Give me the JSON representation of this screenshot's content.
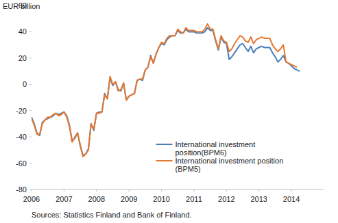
{
  "chart_data": {
    "type": "line",
    "y_label": "EUR billion",
    "note": "Sources: Statistics Finland and Bank of Finland.",
    "x": [
      2006,
      2006.083,
      2006.167,
      2006.25,
      2006.333,
      2006.417,
      2006.5,
      2006.583,
      2006.667,
      2006.75,
      2006.833,
      2006.917,
      2007,
      2007.083,
      2007.167,
      2007.25,
      2007.333,
      2007.417,
      2007.5,
      2007.583,
      2007.667,
      2007.75,
      2007.833,
      2007.917,
      2008,
      2008.083,
      2008.167,
      2008.25,
      2008.333,
      2008.417,
      2008.5,
      2008.583,
      2008.667,
      2008.75,
      2008.833,
      2008.917,
      2009,
      2009.083,
      2009.167,
      2009.25,
      2009.333,
      2009.417,
      2009.5,
      2009.583,
      2009.667,
      2009.75,
      2009.833,
      2009.917,
      2010,
      2010.083,
      2010.167,
      2010.25,
      2010.333,
      2010.417,
      2010.5,
      2010.583,
      2010.667,
      2010.75,
      2010.833,
      2010.917,
      2011,
      2011.083,
      2011.167,
      2011.25,
      2011.333,
      2011.417,
      2011.5,
      2011.583,
      2011.667,
      2011.75,
      2011.833,
      2011.917,
      2012,
      2012.083,
      2012.167,
      2012.25,
      2012.333,
      2012.417,
      2012.5,
      2012.583,
      2012.667,
      2012.75,
      2012.833,
      2012.917,
      2013,
      2013.083,
      2013.167,
      2013.25,
      2013.333,
      2013.417,
      2013.5,
      2013.583,
      2013.667,
      2013.75,
      2013.833,
      2013.917,
      2014,
      2014.083,
      2014.167,
      2014.25
    ],
    "xlim": [
      2006,
      2015
    ],
    "xticks": [
      2006,
      2007,
      2008,
      2009,
      2010,
      2011,
      2012,
      2013,
      2014
    ],
    "ylim": [
      -80,
      60
    ],
    "yticks": [
      -80,
      -60,
      -40,
      -20,
      0,
      20,
      40,
      60
    ],
    "grid": false,
    "legend": "lower right",
    "series": [
      {
        "name": "International investment position(BPM6)",
        "color": "#4a7ebb",
        "values": [
          -25,
          -30,
          -37,
          -39,
          -29,
          -27,
          -26,
          -25,
          -24,
          -22,
          -23,
          -22,
          -21,
          -24,
          -31,
          -43,
          -41,
          -37,
          -47,
          -54,
          -53,
          -49,
          -30,
          -35,
          -22,
          -21,
          -21,
          -7,
          -11,
          5,
          -1,
          2,
          -4,
          -5,
          1,
          -12,
          -9,
          -8,
          -7,
          3,
          4,
          3,
          11,
          13,
          22,
          16,
          23,
          28,
          31,
          30,
          34,
          36,
          37,
          37,
          41,
          39,
          39,
          42,
          40,
          40,
          40,
          39,
          39,
          39,
          40,
          43,
          41,
          41,
          33,
          26,
          36,
          32,
          31,
          19,
          21,
          24,
          27,
          30,
          31,
          28,
          25,
          29,
          24,
          27,
          28,
          29,
          28,
          28,
          28,
          24,
          21,
          17,
          19,
          22,
          17,
          16,
          14,
          12,
          11,
          10
        ]
      },
      {
        "name": "International investment position (BPM5)",
        "color": "#e8772e",
        "values": [
          -26,
          -31,
          -38,
          -38,
          -30,
          -27,
          -25,
          -25,
          -23,
          -22,
          -24,
          -23,
          -21,
          -25,
          -32,
          -44,
          -40,
          -37,
          -46,
          -55,
          -53,
          -50,
          -30,
          -34,
          -22,
          -22,
          -21,
          -8,
          -11,
          6,
          0,
          2,
          -5,
          -4,
          1,
          -12,
          -9,
          -8,
          -7,
          3,
          4,
          4,
          11,
          13,
          21,
          16,
          23,
          28,
          32,
          31,
          35,
          37,
          37,
          37,
          42,
          40,
          39,
          43,
          41,
          41,
          41,
          40,
          40,
          40,
          42,
          46,
          42,
          42,
          34,
          27,
          37,
          33,
          32,
          25,
          27,
          31,
          34,
          37,
          36,
          33,
          32,
          36,
          31,
          34,
          35,
          36,
          35,
          35,
          35,
          30,
          27,
          25,
          27,
          30,
          17,
          16,
          15,
          14,
          13,
          null
        ]
      }
    ]
  }
}
